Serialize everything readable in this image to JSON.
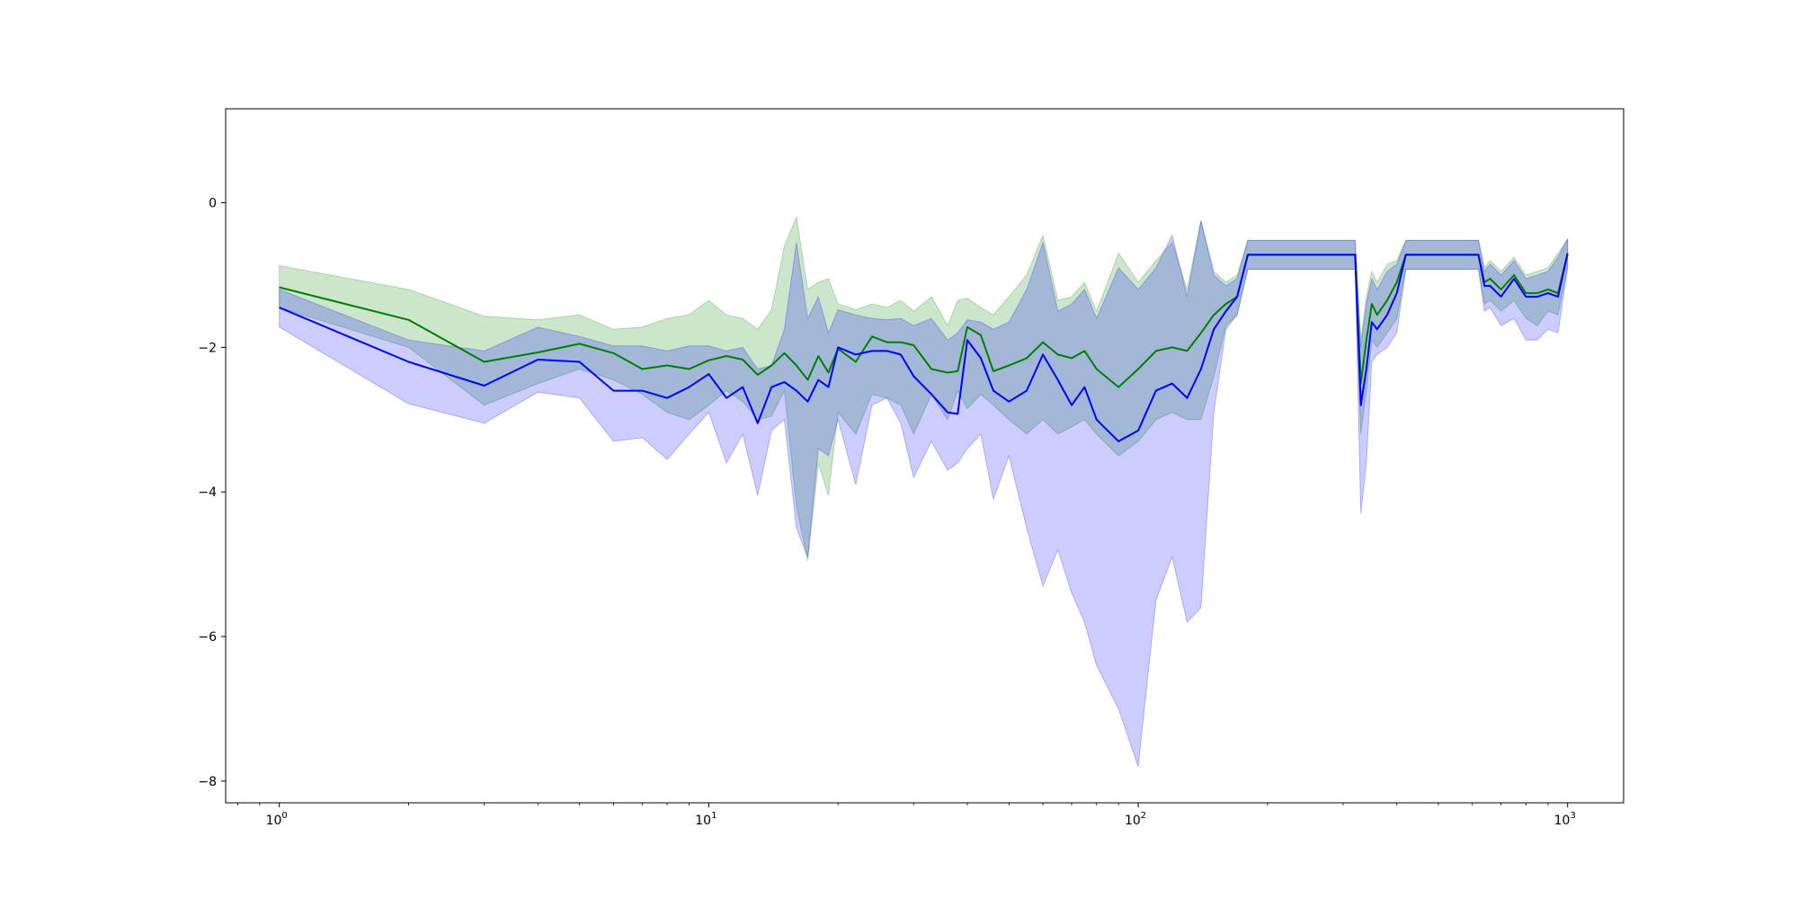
{
  "chart_data": {
    "type": "line",
    "title": "",
    "xlabel": "",
    "ylabel": "",
    "x_scale": "log",
    "xlim": [
      0.75,
      1350
    ],
    "ylim": [
      -8.3,
      1.3
    ],
    "grid": false,
    "legend": "none",
    "x_ticks": [
      {
        "value": 1,
        "base": "10",
        "exp": "0"
      },
      {
        "value": 10,
        "base": "10",
        "exp": "1"
      },
      {
        "value": 100,
        "base": "10",
        "exp": "2"
      },
      {
        "value": 1000,
        "base": "10",
        "exp": "3"
      }
    ],
    "y_ticks": [
      {
        "value": 0,
        "label": "0"
      },
      {
        "value": -2,
        "label": "−2"
      },
      {
        "value": -4,
        "label": "−4"
      },
      {
        "value": -6,
        "label": "−6"
      },
      {
        "value": -8,
        "label": "−8"
      }
    ],
    "series": [
      {
        "color": "#008000",
        "band_color": "#008000",
        "band_opacity": 0.2,
        "x": [
          1,
          2,
          3,
          4,
          5,
          6,
          7,
          8,
          9,
          10,
          11,
          12,
          13,
          14,
          15,
          16,
          17,
          18,
          19,
          20,
          22,
          24,
          26,
          28,
          30,
          33,
          36,
          38,
          40,
          43,
          46,
          50,
          55,
          60,
          65,
          70,
          75,
          80,
          90,
          100,
          110,
          120,
          130,
          140,
          150,
          160,
          170,
          180,
          200,
          250,
          320,
          330,
          340,
          350,
          360,
          380,
          400,
          420,
          450,
          500,
          550,
          620,
          640,
          660,
          700,
          750,
          800,
          850,
          900,
          950,
          1000
        ],
        "y": [
          -1.17,
          -1.62,
          -2.2,
          -2.07,
          -1.95,
          -2.08,
          -2.3,
          -2.25,
          -2.3,
          -2.18,
          -2.12,
          -2.17,
          -2.38,
          -2.25,
          -2.08,
          -2.25,
          -2.45,
          -2.12,
          -2.35,
          -2.02,
          -2.2,
          -1.85,
          -1.93,
          -1.93,
          -1.97,
          -2.3,
          -2.35,
          -2.33,
          -1.72,
          -1.83,
          -2.33,
          -2.25,
          -2.15,
          -1.93,
          -2.1,
          -2.15,
          -2.05,
          -2.3,
          -2.55,
          -2.3,
          -2.05,
          -2.0,
          -2.05,
          -1.8,
          -1.55,
          -1.4,
          -1.3,
          -0.72,
          -0.72,
          -0.72,
          -0.72,
          -2.5,
          -1.9,
          -1.4,
          -1.55,
          -1.35,
          -1.1,
          -0.72,
          -0.72,
          -0.72,
          -0.72,
          -0.72,
          -1.1,
          -1.05,
          -1.2,
          -1.0,
          -1.25,
          -1.25,
          -1.2,
          -1.25,
          -0.7
        ],
        "upper": [
          -0.87,
          -1.2,
          -1.57,
          -1.62,
          -1.55,
          -1.75,
          -1.72,
          -1.6,
          -1.55,
          -1.35,
          -1.55,
          -1.6,
          -1.75,
          -1.48,
          -0.6,
          -0.2,
          -1.2,
          -1.1,
          -1.05,
          -1.4,
          -1.48,
          -1.4,
          -1.45,
          -1.35,
          -1.5,
          -1.3,
          -1.7,
          -1.35,
          -1.32,
          -1.45,
          -1.55,
          -1.3,
          -1.0,
          -0.45,
          -1.35,
          -1.3,
          -1.1,
          -1.5,
          -0.7,
          -1.1,
          -0.8,
          -0.55,
          -1.2,
          -0.25,
          -0.95,
          -1.1,
          -1.0,
          -0.52,
          -0.52,
          -0.52,
          -0.52,
          -1.9,
          -1.3,
          -0.95,
          -1.1,
          -0.85,
          -0.8,
          -0.52,
          -0.52,
          -0.52,
          -0.52,
          -0.52,
          -0.9,
          -0.8,
          -0.95,
          -0.75,
          -1.0,
          -0.95,
          -0.9,
          -0.7,
          -0.5
        ],
        "lower": [
          -1.45,
          -2.0,
          -2.8,
          -2.5,
          -2.3,
          -2.45,
          -2.65,
          -2.9,
          -3.0,
          -2.8,
          -2.6,
          -2.75,
          -3.0,
          -2.95,
          -2.6,
          -4.2,
          -4.95,
          -3.6,
          -4.05,
          -2.9,
          -3.2,
          -2.65,
          -2.7,
          -2.8,
          -3.2,
          -2.65,
          -3.0,
          -2.6,
          -2.85,
          -2.65,
          -2.8,
          -3.0,
          -3.2,
          -3.0,
          -3.2,
          -3.1,
          -3.0,
          -3.2,
          -3.5,
          -3.3,
          -3.0,
          -2.9,
          -3.0,
          -3.0,
          -2.4,
          -1.7,
          -1.55,
          -0.92,
          -0.92,
          -0.92,
          -0.92,
          -3.2,
          -2.6,
          -1.9,
          -2.0,
          -1.8,
          -1.6,
          -0.92,
          -0.92,
          -0.92,
          -0.92,
          -0.92,
          -1.4,
          -1.35,
          -1.5,
          -1.35,
          -1.6,
          -1.7,
          -1.5,
          -1.55,
          -0.9
        ]
      },
      {
        "color": "#0000ff",
        "band_color": "#0000ff",
        "band_opacity": 0.2,
        "x": [
          1,
          2,
          3,
          4,
          5,
          6,
          7,
          8,
          9,
          10,
          11,
          12,
          13,
          14,
          15,
          16,
          17,
          18,
          19,
          20,
          22,
          24,
          26,
          28,
          30,
          33,
          36,
          38,
          40,
          43,
          46,
          50,
          55,
          60,
          65,
          70,
          75,
          80,
          90,
          100,
          110,
          120,
          130,
          140,
          150,
          160,
          170,
          180,
          200,
          250,
          320,
          330,
          340,
          350,
          360,
          380,
          400,
          420,
          450,
          500,
          550,
          620,
          640,
          660,
          700,
          750,
          800,
          850,
          900,
          950,
          1000
        ],
        "y": [
          -1.45,
          -2.2,
          -2.53,
          -2.17,
          -2.2,
          -2.6,
          -2.6,
          -2.7,
          -2.55,
          -2.37,
          -2.7,
          -2.55,
          -3.05,
          -2.55,
          -2.48,
          -2.6,
          -2.75,
          -2.45,
          -2.55,
          -2.0,
          -2.1,
          -2.05,
          -2.05,
          -2.1,
          -2.4,
          -2.65,
          -2.9,
          -2.92,
          -1.9,
          -2.15,
          -2.6,
          -2.75,
          -2.6,
          -2.1,
          -2.45,
          -2.8,
          -2.55,
          -3.0,
          -3.3,
          -3.15,
          -2.6,
          -2.5,
          -2.7,
          -2.3,
          -1.75,
          -1.5,
          -1.3,
          -0.72,
          -0.72,
          -0.72,
          -0.72,
          -2.8,
          -2.3,
          -1.65,
          -1.75,
          -1.55,
          -1.25,
          -0.72,
          -0.72,
          -0.72,
          -0.72,
          -0.72,
          -1.15,
          -1.15,
          -1.3,
          -1.05,
          -1.3,
          -1.3,
          -1.25,
          -1.3,
          -0.7
        ],
        "upper": [
          -1.2,
          -1.9,
          -2.05,
          -1.72,
          -1.85,
          -1.98,
          -1.98,
          -2.05,
          -1.98,
          -1.98,
          -2.05,
          -2.0,
          -2.3,
          -2.25,
          -1.75,
          -0.55,
          -1.6,
          -1.3,
          -1.8,
          -1.48,
          -1.55,
          -1.6,
          -1.62,
          -1.6,
          -1.7,
          -1.6,
          -1.9,
          -1.8,
          -1.62,
          -1.65,
          -1.75,
          -1.65,
          -1.2,
          -0.55,
          -1.5,
          -1.4,
          -1.2,
          -1.6,
          -0.9,
          -1.2,
          -0.9,
          -0.45,
          -1.3,
          -0.25,
          -1.0,
          -1.15,
          -1.05,
          -0.52,
          -0.52,
          -0.52,
          -0.52,
          -2.0,
          -1.4,
          -1.05,
          -1.2,
          -0.95,
          -0.85,
          -0.52,
          -0.52,
          -0.52,
          -0.52,
          -0.52,
          -0.95,
          -0.85,
          -1.0,
          -0.8,
          -1.05,
          -1.0,
          -0.95,
          -0.75,
          -0.5
        ],
        "lower": [
          -1.72,
          -2.78,
          -3.05,
          -2.62,
          -2.7,
          -3.3,
          -3.25,
          -3.55,
          -3.2,
          -2.9,
          -3.6,
          -3.2,
          -4.05,
          -3.15,
          -3.0,
          -4.5,
          -4.9,
          -3.4,
          -3.5,
          -3.0,
          -3.9,
          -2.8,
          -2.7,
          -3.05,
          -3.8,
          -3.3,
          -3.7,
          -3.6,
          -3.4,
          -3.2,
          -4.1,
          -3.5,
          -4.5,
          -5.3,
          -4.8,
          -5.4,
          -5.8,
          -6.4,
          -7.0,
          -7.8,
          -5.5,
          -4.9,
          -5.8,
          -5.6,
          -2.9,
          -1.75,
          -1.55,
          -0.92,
          -0.92,
          -0.92,
          -0.92,
          -4.3,
          -3.6,
          -2.2,
          -2.1,
          -2.0,
          -1.8,
          -0.92,
          -0.92,
          -0.92,
          -0.92,
          -0.92,
          -1.5,
          -1.45,
          -1.7,
          -1.6,
          -1.9,
          -1.9,
          -1.75,
          -1.8,
          -0.9
        ]
      }
    ]
  }
}
